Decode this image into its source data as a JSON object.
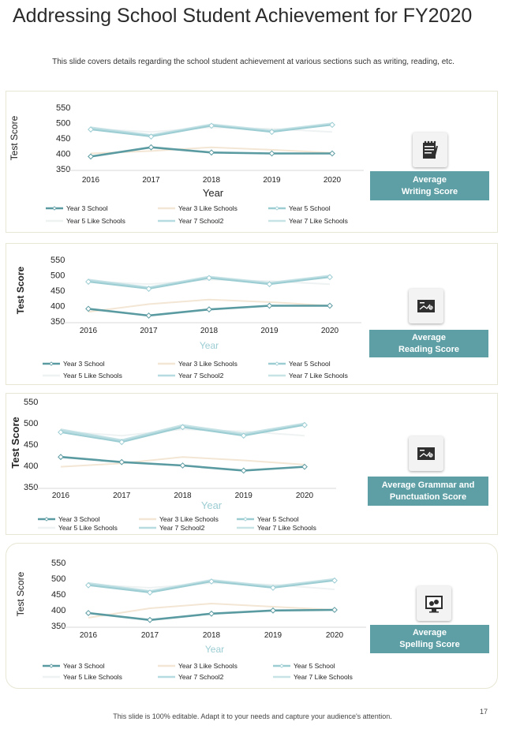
{
  "title": "Addressing School Student Achievement for FY2020",
  "subtitle": "This slide covers details regarding the school student achievement  at various  sections such as writing, reading, etc.",
  "footer": "This slide is 100% editable. Adapt it to your needs and capture your audience's attention.",
  "page_number": "17",
  "colors": {
    "accent": "#5d9fa5",
    "dark_teal": "#5a9aa1",
    "light_teal": "#9ccdd3",
    "beige": "#f3e6d4",
    "pale": "#e8ecec"
  },
  "sections": [
    {
      "label_line1": "Average",
      "label_line2": "Writing Score",
      "icon": "notepad-pen-icon"
    },
    {
      "label_line1": "Average",
      "label_line2": "Reading Score",
      "icon": "screen-graph-icon"
    },
    {
      "label_line1": "Average Grammar and",
      "label_line2": "Punctuation  Score",
      "icon": "screen-graph-percent-icon"
    },
    {
      "label_line1": "Average",
      "label_line2": "Spelling Score",
      "icon": "monitor-coins-icon"
    }
  ],
  "chart_data": [
    {
      "type": "line",
      "categories": [
        "2016",
        "2017",
        "2018",
        "2019",
        "2020"
      ],
      "xlabel": "Year",
      "ylabel": "Test Score",
      "ylim": [
        350,
        550
      ],
      "yticks": [
        "350",
        "400",
        "450",
        "500",
        "550"
      ],
      "legend": "bottom",
      "series": [
        {
          "name": "Year 3 School",
          "values": [
            390,
            420,
            403,
            400,
            400
          ],
          "color": "#5a9aa1"
        },
        {
          "name": "Year 3  Like Schools",
          "values": [
            400,
            408,
            420,
            412,
            402
          ],
          "color": "#f3e6d4"
        },
        {
          "name": "Year 5 School",
          "values": [
            478,
            455,
            490,
            470,
            493
          ],
          "color": "#9ccdd3"
        },
        {
          "name": "Year 5  Like Schools",
          "values": [
            480,
            470,
            485,
            480,
            470
          ],
          "color": "#eef2f2"
        },
        {
          "name": "Year 7 School2",
          "values": [
            482,
            458,
            492,
            472,
            495
          ],
          "color": "#b6dbe0"
        },
        {
          "name": "Year 7  Like Schools",
          "values": [
            485,
            460,
            495,
            475,
            498
          ],
          "color": "#c8e3e6"
        }
      ]
    },
    {
      "type": "line",
      "categories": [
        "2016",
        "2017",
        "2018",
        "2019",
        "2020"
      ],
      "xlabel": "Year",
      "ylabel": "Test Score",
      "ylim": [
        350,
        550
      ],
      "yticks": [
        "350",
        "400",
        "450",
        "500",
        "550"
      ],
      "legend": "bottom",
      "series": [
        {
          "name": "Year 3 School",
          "values": [
            390,
            368,
            388,
            400,
            400
          ],
          "color": "#5a9aa1"
        },
        {
          "name": "Year 3  Like Schools",
          "values": [
            380,
            405,
            420,
            412,
            400
          ],
          "color": "#f3e6d4"
        },
        {
          "name": "Year 5 School",
          "values": [
            478,
            455,
            490,
            470,
            493
          ],
          "color": "#9ccdd3"
        },
        {
          "name": "Year 5  Like Schools",
          "values": [
            480,
            470,
            485,
            480,
            470
          ],
          "color": "#eef2f2"
        },
        {
          "name": "Year 7 School2",
          "values": [
            482,
            458,
            492,
            472,
            495
          ],
          "color": "#b6dbe0"
        },
        {
          "name": "Year 7  Like Schools",
          "values": [
            485,
            460,
            495,
            475,
            498
          ],
          "color": "#c8e3e6"
        }
      ]
    },
    {
      "type": "line",
      "categories": [
        "2016",
        "2017",
        "2018",
        "2019",
        "2020"
      ],
      "xlabel": "Year",
      "ylabel": "Test Score",
      "ylim": [
        350,
        550
      ],
      "yticks": [
        "350",
        "400",
        "450",
        "500",
        "550"
      ],
      "legend": "bottom",
      "series": [
        {
          "name": "Year 3 School",
          "values": [
            420,
            408,
            400,
            388,
            397
          ],
          "color": "#5a9aa1"
        },
        {
          "name": "Year 3  Like Schools",
          "values": [
            397,
            405,
            420,
            412,
            402
          ],
          "color": "#f3e6d4"
        },
        {
          "name": "Year 5 School",
          "values": [
            478,
            455,
            490,
            470,
            495
          ],
          "color": "#9ccdd3"
        },
        {
          "name": "Year 5  Like Schools",
          "values": [
            480,
            470,
            485,
            480,
            470
          ],
          "color": "#eef2f2"
        },
        {
          "name": "Year 7 School2",
          "values": [
            482,
            458,
            492,
            472,
            497
          ],
          "color": "#b6dbe0"
        },
        {
          "name": "Year 7  Like Schools",
          "values": [
            485,
            460,
            495,
            475,
            499
          ],
          "color": "#c8e3e6"
        }
      ]
    },
    {
      "type": "line",
      "categories": [
        "2016",
        "2017",
        "2018",
        "2019",
        "2020"
      ],
      "xlabel": "Year",
      "ylabel": "Test Score",
      "ylim": [
        350,
        550
      ],
      "yticks": [
        "350",
        "400",
        "450",
        "500",
        "550"
      ],
      "legend": "bottom",
      "series": [
        {
          "name": "Year 3 School",
          "values": [
            390,
            368,
            388,
            398,
            400
          ],
          "color": "#5a9aa1"
        },
        {
          "name": "Year 3  Like Schools",
          "values": [
            375,
            405,
            420,
            410,
            400
          ],
          "color": "#f3e6d4"
        },
        {
          "name": "Year 5 School",
          "values": [
            478,
            455,
            490,
            470,
            493
          ],
          "color": "#9ccdd3"
        },
        {
          "name": "Year 5  Like Schools",
          "values": [
            480,
            470,
            485,
            480,
            465
          ],
          "color": "#eef2f2"
        },
        {
          "name": "Year 7 School2",
          "values": [
            482,
            458,
            492,
            472,
            495
          ],
          "color": "#b6dbe0"
        },
        {
          "name": "Year 7  Like Schools",
          "values": [
            485,
            460,
            495,
            475,
            498
          ],
          "color": "#c8e3e6"
        }
      ]
    }
  ]
}
